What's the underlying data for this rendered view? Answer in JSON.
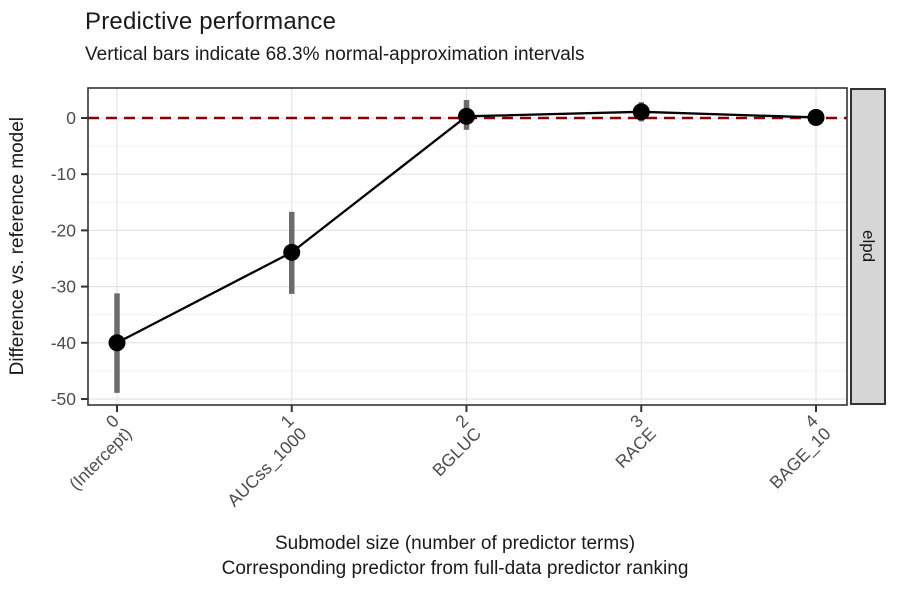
{
  "title": "Predictive performance",
  "subtitle": "Vertical bars indicate 68.3% normal-approximation intervals",
  "y_axis": {
    "label": "Difference vs. reference model",
    "tick_values": [
      0,
      -10,
      -20,
      -30,
      -40,
      -50
    ],
    "tick_labels": [
      "0",
      "-10",
      "-20",
      "-30",
      "-40",
      "-50"
    ]
  },
  "x_axis": {
    "title_line1": "Submodel size (number of predictor terms)",
    "title_line2": "Corresponding predictor from full-data predictor ranking",
    "tick_values": [
      0,
      1,
      2,
      3,
      4
    ]
  },
  "facet_strip": {
    "label": "elpd"
  },
  "colors": {
    "reference_line": "#8B0000",
    "point": "#000000",
    "connecting_line": "#000000",
    "error_bar": "#6b6b6b",
    "grid_major": "#e4e4e4",
    "grid_minor": "#f1f1f1",
    "panel_border": "#333333",
    "axis_tick": "#333333",
    "tick_text": "#4d4d4d",
    "strip_fill": "#d6d6d6",
    "text": "#1a1a1a"
  },
  "chart_data": {
    "type": "line",
    "title": "Predictive performance",
    "subtitle": "Vertical bars indicate 68.3% normal-approximation intervals",
    "ylabel": "Difference vs. reference model",
    "xlabel": "Submodel size (number of predictor terms) — Corresponding predictor from full-data predictor ranking",
    "facet_label": "elpd",
    "interval_type": "68.3% normal-approximation intervals",
    "x": [
      0,
      1,
      2,
      3,
      4
    ],
    "x_tick_labels": [
      [
        "0",
        "(Intercept)"
      ],
      [
        "1",
        "AUCss_1000"
      ],
      [
        "2",
        "BGLUC"
      ],
      [
        "3",
        "RACE"
      ],
      [
        "4",
        "BAGE_10"
      ]
    ],
    "series": [
      {
        "name": "elpd difference vs. reference model",
        "values": [
          -40.0,
          -23.9,
          0.3,
          1.1,
          0.1
        ],
        "ci_lower": [
          -48.9,
          -31.3,
          -2.1,
          -0.6,
          -1.4
        ],
        "ci_upper": [
          -31.2,
          -16.7,
          3.2,
          2.8,
          1.6
        ]
      }
    ],
    "reference_line": {
      "y": 0,
      "style": "dashed",
      "color": "darkred"
    },
    "ylim": [
      -51.1,
      5.3
    ],
    "xlim": [
      -0.17,
      4.18
    ],
    "y_major_ticks": [
      0,
      -10,
      -20,
      -30,
      -40,
      -50
    ],
    "y_minor_ticks": [
      -5,
      -15,
      -25,
      -35,
      -45
    ],
    "x_minor_gridlines": false,
    "grid": true,
    "legend": false
  }
}
